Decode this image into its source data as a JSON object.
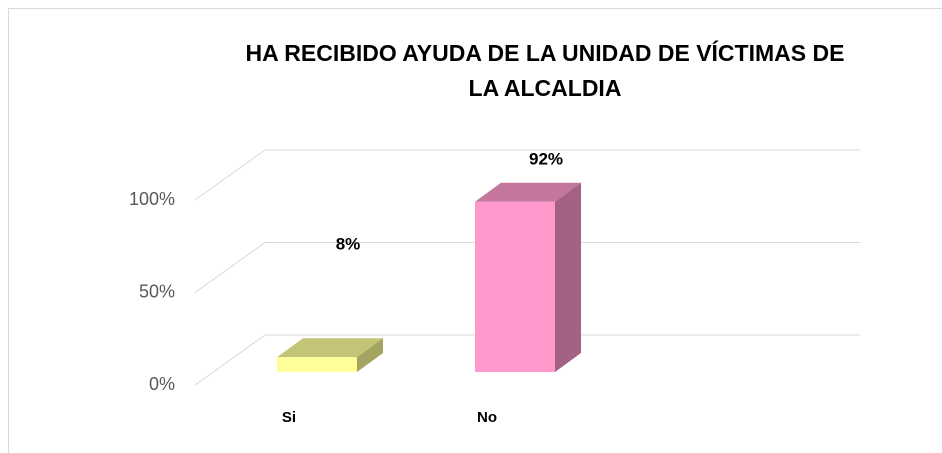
{
  "chart_data": {
    "type": "bar3d",
    "title": "HA RECIBIDO AYUDA DE  LA UNIDAD DE VÍCTIMAS DE LA ALCALDIA",
    "categories": [
      "Si",
      "No"
    ],
    "values": [
      8,
      92
    ],
    "value_labels": [
      "8%",
      "92%"
    ],
    "colors": [
      "#ffff99",
      "#ff99cc"
    ],
    "ylim": [
      0,
      100
    ],
    "yticks": [
      {
        "value": 0,
        "label": "0%"
      },
      {
        "value": 50,
        "label": "50%"
      },
      {
        "value": 100,
        "label": "100%"
      }
    ],
    "grid": true
  }
}
